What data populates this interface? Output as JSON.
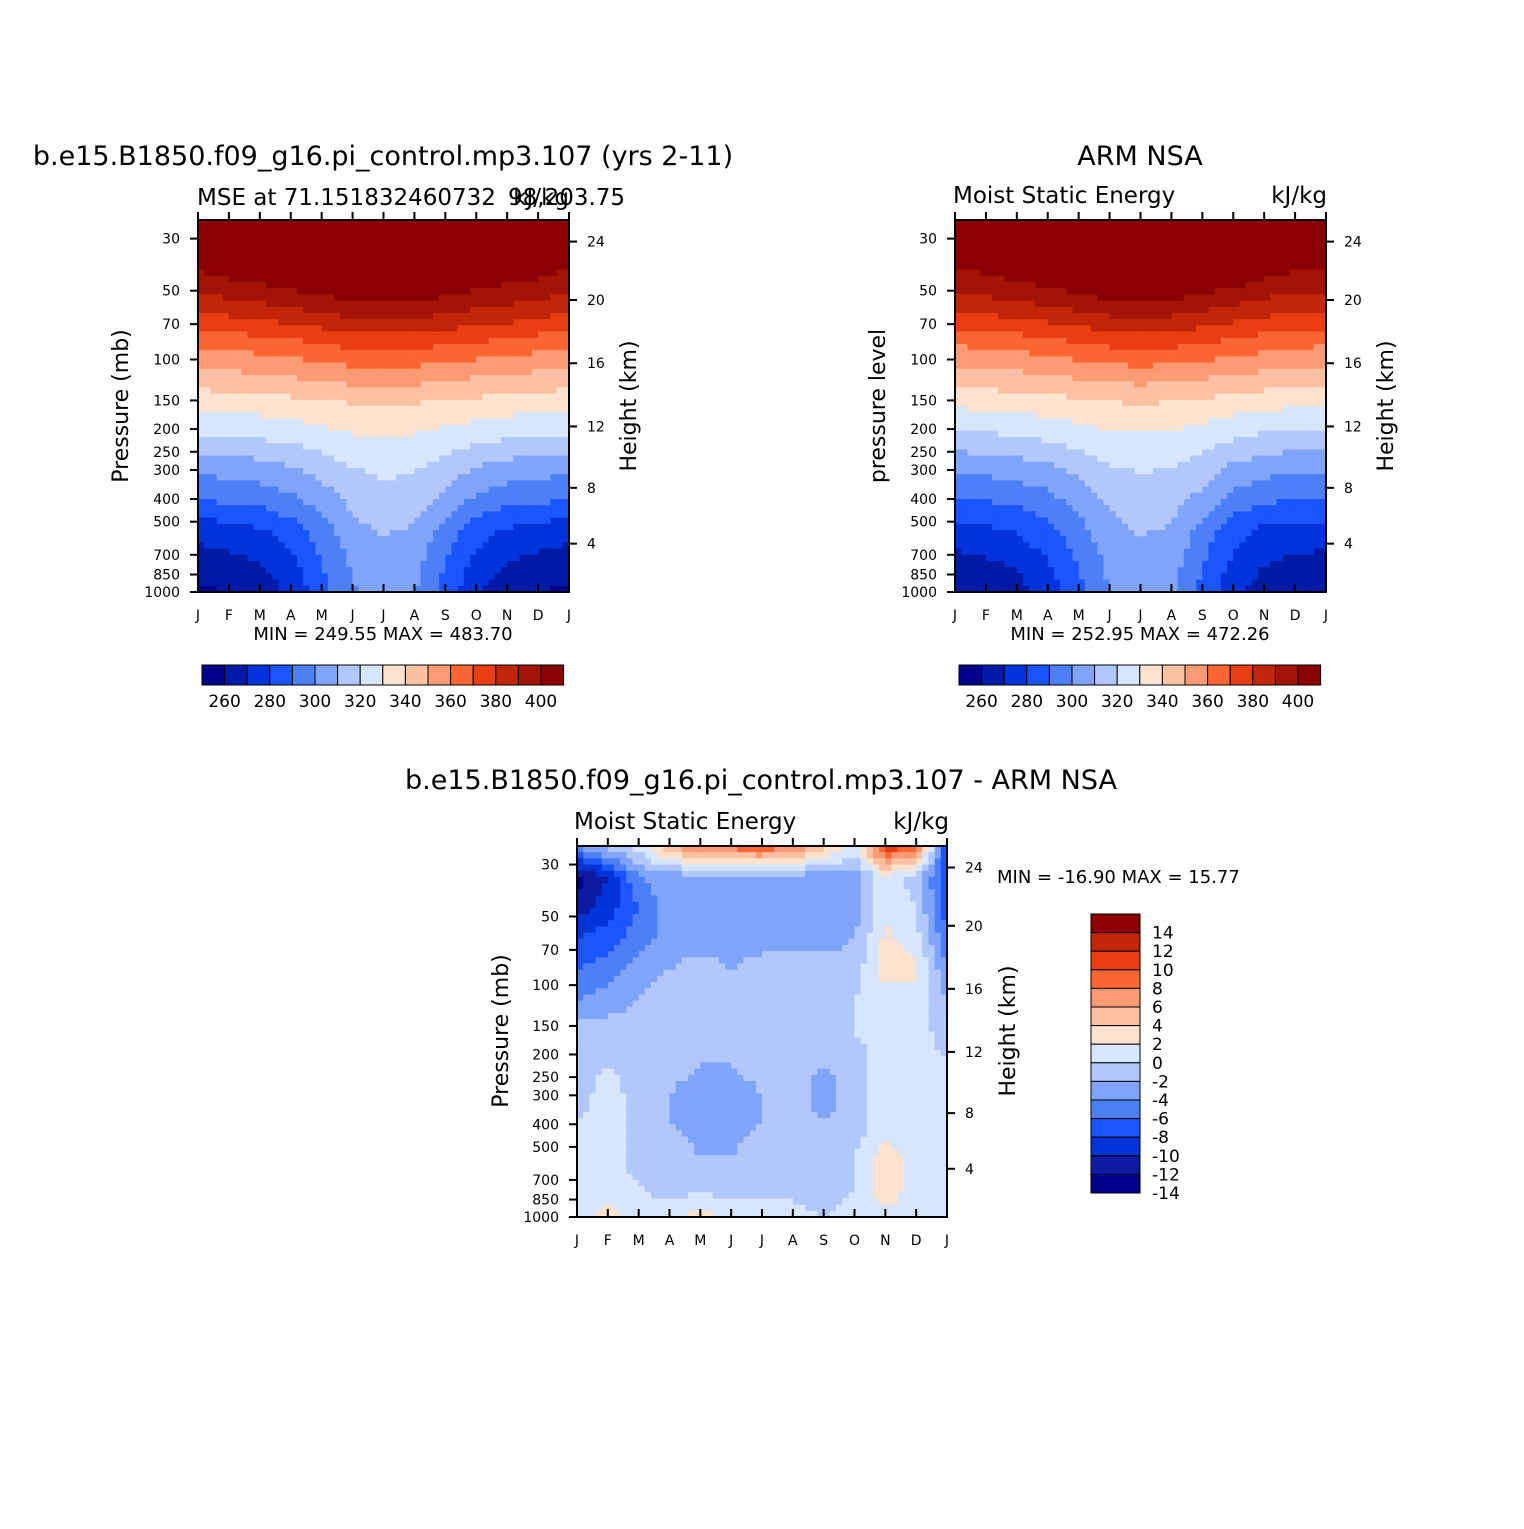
{
  "colors": {
    "abs_palette": [
      "#00008b",
      "#001aa5",
      "#0033d9",
      "#1a55ff",
      "#4d7ff7",
      "#80a4f9",
      "#b2c7fb",
      "#d6e6fc",
      "#fde3cf",
      "#fcc0a3",
      "#fc9a73",
      "#fb6632",
      "#e83e12",
      "#c22508",
      "#a31406",
      "#8b0000"
    ],
    "diff_palette": [
      "#00008b",
      "#0d1aa2",
      "#0033d9",
      "#1a55ff",
      "#4d7ff7",
      "#80a4f9",
      "#b2c7fb",
      "#d6e6fc",
      "#fde3cf",
      "#fcc0a3",
      "#fc9a73",
      "#fb6632",
      "#e83e12",
      "#c22508",
      "#8b0000"
    ]
  },
  "chart_data": [
    {
      "type": "heatmap",
      "title": "b.e15.B1850.f09_g16.pi_control.mp3.107 (yrs 2-11)",
      "subtitle_left": "MSE at 71.151832460732",
      "subtitle_right": "98,203.75",
      "units": "kJ/kg",
      "ylabel": "Pressure (mb)",
      "ylabel_right": "Height (km)",
      "months": [
        "J",
        "F",
        "M",
        "A",
        "M",
        "J",
        "J",
        "A",
        "S",
        "O",
        "N",
        "D",
        "J"
      ],
      "pressure_ticks": [
        "30",
        "50",
        "70",
        "100",
        "150",
        "200",
        "250",
        "300",
        "400",
        "500",
        "700",
        "850",
        "1000"
      ],
      "height_ticks": [
        "4",
        "8",
        "12",
        "16",
        "20",
        "24"
      ],
      "min_text": "MIN = 249.55 MAX = 483.70",
      "colorbar_levels": [
        "260",
        "280",
        "300",
        "320",
        "340",
        "360",
        "380",
        "400"
      ],
      "grid": [
        [
          430,
          432,
          433,
          434,
          436,
          437,
          437,
          436,
          434,
          432,
          430,
          429,
          430
        ],
        [
          405,
          407,
          410,
          414,
          418,
          421,
          422,
          421,
          418,
          414,
          410,
          407,
          405
        ],
        [
          397,
          399,
          401,
          404,
          408,
          411,
          412,
          411,
          408,
          404,
          401,
          399,
          397
        ],
        [
          380,
          382,
          384,
          387,
          390,
          393,
          394,
          393,
          391,
          388,
          386,
          383,
          380
        ],
        [
          362,
          363,
          365,
          367,
          370,
          373,
          374,
          373,
          371,
          369,
          367,
          364,
          362
        ],
        [
          347,
          348,
          349,
          351,
          353,
          355,
          356,
          355,
          353,
          351,
          350,
          348,
          347
        ],
        [
          332,
          333,
          334,
          335,
          337,
          339,
          340,
          339,
          337,
          336,
          334,
          333,
          332
        ],
        [
          320,
          320,
          321,
          323,
          326,
          329,
          330,
          329,
          326,
          323,
          321,
          320,
          320
        ],
        [
          303,
          304,
          306,
          309,
          314,
          320,
          322,
          321,
          316,
          309,
          306,
          304,
          303
        ],
        [
          291,
          292,
          294,
          298,
          305,
          313,
          317,
          315,
          308,
          298,
          294,
          292,
          291
        ],
        [
          274,
          276,
          279,
          285,
          295,
          307,
          311,
          309,
          296,
          284,
          279,
          276,
          274
        ],
        [
          265,
          267,
          270,
          278,
          290,
          302,
          306,
          304,
          290,
          278,
          270,
          267,
          265
        ],
        [
          258,
          260,
          264,
          272,
          286,
          299,
          304,
          301,
          286,
          272,
          263,
          260,
          258
        ]
      ]
    },
    {
      "type": "heatmap",
      "title": "ARM NSA",
      "subtitle_left": "Moist Static Energy",
      "units": "kJ/kg",
      "ylabel": "pressure level",
      "ylabel_right": "Height (km)",
      "months": [
        "J",
        "F",
        "M",
        "A",
        "M",
        "J",
        "J",
        "A",
        "S",
        "O",
        "N",
        "D",
        "J"
      ],
      "pressure_ticks": [
        "30",
        "50",
        "70",
        "100",
        "150",
        "200",
        "250",
        "300",
        "400",
        "500",
        "700",
        "850",
        "1000"
      ],
      "height_ticks": [
        "4",
        "8",
        "12",
        "16",
        "20",
        "24"
      ],
      "min_text": "MIN = 252.95 MAX = 472.26",
      "colorbar_levels": [
        "260",
        "280",
        "300",
        "320",
        "340",
        "360",
        "380",
        "400"
      ],
      "grid": [
        [
          428,
          430,
          431,
          433,
          434,
          435,
          436,
          435,
          433,
          431,
          429,
          428,
          428
        ],
        [
          404,
          406,
          409,
          413,
          417,
          420,
          421,
          420,
          417,
          413,
          409,
          406,
          404
        ],
        [
          396,
          398,
          400,
          403,
          407,
          410,
          411,
          410,
          407,
          403,
          399,
          397,
          396
        ],
        [
          379,
          381,
          383,
          386,
          389,
          392,
          393,
          392,
          389,
          386,
          382,
          380,
          379
        ],
        [
          361,
          362,
          364,
          366,
          369,
          372,
          373,
          372,
          370,
          367,
          364,
          362,
          361
        ],
        [
          346,
          347,
          348,
          350,
          352,
          354,
          355,
          354,
          352,
          350,
          348,
          347,
          346
        ],
        [
          331,
          332,
          333,
          334,
          336,
          338,
          339,
          338,
          336,
          334,
          332,
          331,
          331
        ],
        [
          317,
          318,
          320,
          322,
          325,
          328,
          329,
          328,
          325,
          321,
          318,
          317,
          317
        ],
        [
          302,
          303,
          305,
          308,
          313,
          319,
          321,
          320,
          315,
          308,
          304,
          302,
          302
        ],
        [
          290,
          291,
          293,
          297,
          304,
          312,
          316,
          314,
          307,
          297,
          292,
          290,
          290
        ],
        [
          276,
          278,
          281,
          287,
          296,
          307,
          311,
          309,
          296,
          284,
          278,
          276,
          276
        ],
        [
          267,
          269,
          272,
          280,
          291,
          303,
          307,
          305,
          291,
          279,
          271,
          268,
          267
        ],
        [
          260,
          262,
          266,
          274,
          287,
          300,
          305,
          302,
          287,
          273,
          264,
          261,
          260
        ]
      ]
    },
    {
      "type": "heatmap",
      "title": "b.e15.B1850.f09_g16.pi_control.mp3.107 - ARM NSA",
      "subtitle_left": "Moist Static Energy",
      "units": "kJ/kg",
      "ylabel": "Pressure (mb)",
      "ylabel_right": "Height (km)",
      "months": [
        "J",
        "F",
        "M",
        "A",
        "M",
        "J",
        "J",
        "A",
        "S",
        "O",
        "N",
        "D",
        "J"
      ],
      "pressure_ticks": [
        "30",
        "50",
        "70",
        "100",
        "150",
        "200",
        "250",
        "300",
        "400",
        "500",
        "700",
        "850",
        "1000"
      ],
      "height_ticks": [
        "4",
        "8",
        "12",
        "16",
        "20",
        "24"
      ],
      "min_text": "MIN = -16.90 MAX = 15.77",
      "colorbar_levels": [
        "14",
        "12",
        "10",
        "8",
        "6",
        "4",
        "2",
        "0",
        "-2",
        "-4",
        "-6",
        "-8",
        "-10",
        "-12",
        "-14"
      ],
      "grid": [
        [
          -6,
          -3,
          -1,
          4,
          6,
          7,
          8,
          6,
          3,
          -1,
          10,
          7,
          -10
        ],
        [
          -15,
          -12,
          -6,
          -5,
          -5,
          -5,
          -5,
          -5,
          -5,
          -5,
          -0.5,
          -3,
          -10
        ],
        [
          -13,
          -11,
          -8,
          -5,
          -5,
          -5,
          -5,
          -5,
          -5,
          -5,
          -0.5,
          -2,
          -9
        ],
        [
          -10,
          -9,
          -7,
          -5,
          -5,
          -5,
          -5,
          -5,
          -5,
          -4,
          0.5,
          -1,
          -8
        ],
        [
          -8,
          -7,
          -5,
          -4,
          -3,
          -4,
          -3,
          -3,
          -3,
          -3,
          1,
          0.8,
          -6
        ],
        [
          -6,
          -5,
          -4,
          -3,
          -3,
          -3,
          -3,
          -3,
          -3,
          -2,
          -1,
          -1,
          -4
        ],
        [
          -3,
          -3,
          -3,
          -2,
          -3,
          -3,
          -3,
          -2,
          -3,
          -2,
          -1,
          -1,
          -3
        ],
        [
          -3,
          -2,
          -3,
          -3,
          -4,
          -4,
          -3,
          -3,
          -4,
          -3,
          -1,
          -1,
          -2
        ],
        [
          -3,
          -1,
          -3,
          -4,
          -5,
          -5,
          -4,
          -3,
          -5,
          -3,
          -1,
          -1,
          -2
        ],
        [
          -2,
          -1,
          -3,
          -4,
          -5,
          -5,
          -4,
          -3,
          -4,
          -3,
          -1,
          -1,
          -2
        ],
        [
          -2,
          -1,
          -3,
          -3,
          -4,
          -4,
          -3,
          -3,
          -3,
          -2,
          1,
          -1,
          -2
        ],
        [
          -1,
          -1,
          -2,
          -3,
          -3,
          -3,
          -3,
          -3,
          -4,
          -2,
          1.5,
          -1,
          -1
        ],
        [
          -1,
          1,
          -1,
          -1,
          1,
          -1,
          -1,
          -1,
          -2,
          -1,
          -0.5,
          -1,
          -1
        ]
      ]
    }
  ]
}
